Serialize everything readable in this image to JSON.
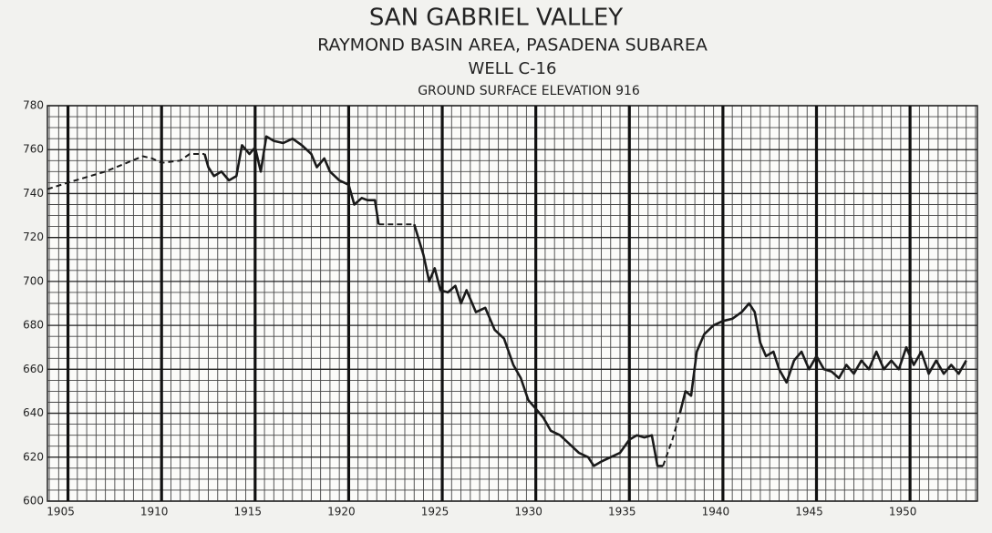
{
  "chart_data": {
    "type": "line",
    "title": "SAN GABRIEL VALLEY",
    "subtitle": "RAYMOND BASIN AREA, PASADENA SUBAREA",
    "well": "WELL C-16",
    "elevation_note": "GROUND SURFACE ELEVATION 916",
    "xlim": [
      1903.9,
      1953.6
    ],
    "xticks": [
      1905,
      1910,
      1915,
      1920,
      1925,
      1930,
      1935,
      1940,
      1945,
      1950
    ],
    "ylim": [
      600,
      780
    ],
    "yticks": [
      600,
      620,
      640,
      660,
      680,
      700,
      720,
      740,
      760,
      780
    ],
    "grid": true,
    "minor_grid": {
      "x_step": 0.5,
      "y_step": 5
    },
    "series": [
      {
        "style": "dashed",
        "color": "#1a1a1a",
        "x": [
          1903.9,
          1905,
          1907,
          1909,
          1909.5,
          1910,
          1911,
          1911.5,
          1912.3
        ],
        "values": [
          742,
          745,
          750,
          757,
          756,
          754,
          755,
          758,
          758
        ]
      },
      {
        "style": "solid",
        "color": "#1a1a1a",
        "x": [
          1912.3,
          1912.5,
          1912.8,
          1913.2,
          1913.6,
          1914,
          1914.3,
          1914.7,
          1915,
          1915.3,
          1915.6,
          1916,
          1916.5,
          1917,
          1917.5,
          1918,
          1918.3,
          1918.7,
          1919,
          1919.5,
          1920,
          1920.3,
          1920.7,
          1921,
          1921.4,
          1921.6
        ],
        "values": [
          758,
          752,
          748,
          750,
          746,
          748,
          762,
          758,
          761,
          750,
          766,
          764,
          763,
          765,
          762,
          758,
          752,
          756,
          750,
          746,
          744,
          735,
          738,
          737,
          737,
          726
        ]
      },
      {
        "style": "dashed",
        "color": "#1a1a1a",
        "x": [
          1921.6,
          1923.5
        ],
        "values": [
          726,
          726
        ]
      },
      {
        "style": "solid",
        "color": "#1a1a1a",
        "x": [
          1923.5,
          1924,
          1924.3,
          1924.6,
          1924.9,
          1925.3,
          1925.7,
          1926,
          1926.3,
          1926.8,
          1927.3,
          1927.8,
          1928.3,
          1928.8,
          1929.2,
          1929.6,
          1930,
          1930.4,
          1930.8,
          1931.3,
          1931.8,
          1932.3,
          1932.8,
          1933.1,
          1933.5,
          1934,
          1934.5,
          1935,
          1935.4,
          1935.8,
          1936.2,
          1936.5,
          1936.8
        ],
        "values": [
          726,
          712,
          700,
          706,
          696,
          695,
          698,
          690,
          696,
          686,
          688,
          678,
          674,
          662,
          656,
          646,
          642,
          638,
          632,
          630,
          626,
          622,
          620,
          616,
          618,
          620,
          622,
          628,
          630,
          629,
          630,
          616,
          616
        ]
      },
      {
        "style": "dashed",
        "color": "#1a1a1a",
        "x": [
          1936.8,
          1937.3,
          1937.7
        ],
        "values": [
          616,
          628,
          640
        ]
      },
      {
        "style": "solid",
        "color": "#1a1a1a",
        "x": [
          1937.7,
          1938,
          1938.3,
          1938.6,
          1939,
          1939.5,
          1940,
          1940.5,
          1941,
          1941.4,
          1941.7,
          1942,
          1942.3,
          1942.7,
          1943,
          1943.4,
          1943.8,
          1944.2,
          1944.6,
          1945,
          1945.4,
          1945.8,
          1946.2,
          1946.6,
          1947,
          1947.4,
          1947.8,
          1948.2,
          1948.6,
          1949,
          1949.4,
          1949.8,
          1950.2,
          1950.6,
          1951,
          1951.4,
          1951.8,
          1952.2,
          1952.6,
          1953
        ],
        "values": [
          640,
          650,
          648,
          668,
          676,
          680,
          682,
          683,
          686,
          690,
          686,
          672,
          666,
          668,
          660,
          654,
          664,
          668,
          660,
          666,
          660,
          659,
          656,
          662,
          658,
          664,
          660,
          668,
          660,
          664,
          660,
          670,
          662,
          668,
          658,
          664,
          658,
          662,
          658,
          664
        ]
      }
    ]
  }
}
